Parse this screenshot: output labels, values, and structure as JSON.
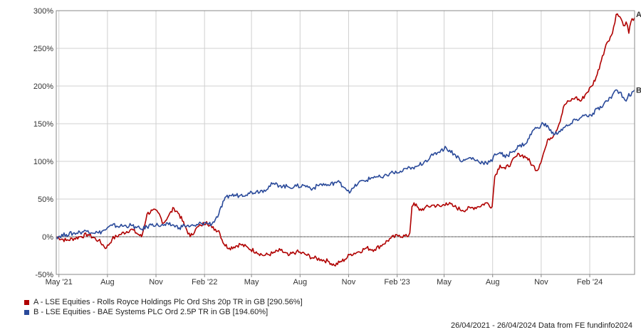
{
  "chart_data": {
    "type": "line",
    "y_axis": {
      "ticks": [
        "300%",
        "250%",
        "200%",
        "150%",
        "100%",
        "50%",
        "0%",
        "-50%"
      ],
      "values": [
        300,
        250,
        200,
        150,
        100,
        50,
        0,
        -50
      ],
      "ylim": [
        -50,
        300
      ]
    },
    "x_axis": {
      "ticks": [
        "May '21",
        "Aug",
        "Nov",
        "Feb '22",
        "May",
        "Aug",
        "Nov",
        "Feb '23",
        "May",
        "Aug",
        "Nov",
        "Feb '24"
      ],
      "tick_dates": [
        "2021-05-01",
        "2021-08-01",
        "2021-11-01",
        "2022-02-01",
        "2022-05-01",
        "2022-08-01",
        "2022-11-01",
        "2023-02-01",
        "2023-05-01",
        "2023-08-01",
        "2023-11-01",
        "2024-02-01"
      ],
      "range": [
        "2021-04-26",
        "2024-04-26"
      ]
    },
    "grid": true,
    "zero_line": "dotted",
    "series": [
      {
        "key": "A",
        "name": "A - LSE Equities - Rolls Royce Holdings Plc Ord Shs 20p TR in GB [290.56%]",
        "color": "#b00000",
        "points": [
          [
            "2021-04-26",
            0
          ],
          [
            "2021-05-15",
            -5
          ],
          [
            "2021-06-10",
            0
          ],
          [
            "2021-06-25",
            3
          ],
          [
            "2021-07-15",
            -5
          ],
          [
            "2021-07-30",
            -15
          ],
          [
            "2021-08-10",
            -3
          ],
          [
            "2021-08-25",
            3
          ],
          [
            "2021-09-15",
            10
          ],
          [
            "2021-09-25",
            5
          ],
          [
            "2021-10-05",
            0
          ],
          [
            "2021-10-15",
            30
          ],
          [
            "2021-10-25",
            35
          ],
          [
            "2021-11-05",
            32
          ],
          [
            "2021-11-15",
            18
          ],
          [
            "2021-11-25",
            28
          ],
          [
            "2021-12-05",
            38
          ],
          [
            "2021-12-15",
            30
          ],
          [
            "2021-12-25",
            15
          ],
          [
            "2022-01-05",
            0
          ],
          [
            "2022-01-15",
            10
          ],
          [
            "2022-01-25",
            15
          ],
          [
            "2022-02-05",
            20
          ],
          [
            "2022-02-15",
            12
          ],
          [
            "2022-02-28",
            8
          ],
          [
            "2022-03-10",
            -10
          ],
          [
            "2022-03-20",
            -15
          ],
          [
            "2022-04-10",
            -10
          ],
          [
            "2022-04-25",
            -15
          ],
          [
            "2022-05-10",
            -20
          ],
          [
            "2022-05-25",
            -25
          ],
          [
            "2022-06-10",
            -22
          ],
          [
            "2022-06-25",
            -18
          ],
          [
            "2022-07-10",
            -25
          ],
          [
            "2022-07-25",
            -20
          ],
          [
            "2022-08-10",
            -23
          ],
          [
            "2022-08-25",
            -28
          ],
          [
            "2022-09-10",
            -30
          ],
          [
            "2022-09-25",
            -33
          ],
          [
            "2022-10-05",
            -38
          ],
          [
            "2022-10-15",
            -34
          ],
          [
            "2022-10-25",
            -30
          ],
          [
            "2022-11-05",
            -23
          ],
          [
            "2022-11-20",
            -20
          ],
          [
            "2022-12-05",
            -15
          ],
          [
            "2022-12-20",
            -17
          ],
          [
            "2023-01-05",
            -10
          ],
          [
            "2023-01-20",
            -2
          ],
          [
            "2023-02-05",
            2
          ],
          [
            "2023-02-20",
            0
          ],
          [
            "2023-02-25",
            5
          ],
          [
            "2023-03-01",
            40
          ],
          [
            "2023-03-05",
            45
          ],
          [
            "2023-03-15",
            35
          ],
          [
            "2023-03-25",
            38
          ],
          [
            "2023-04-10",
            42
          ],
          [
            "2023-04-25",
            40
          ],
          [
            "2023-05-05",
            45
          ],
          [
            "2023-05-20",
            40
          ],
          [
            "2023-06-05",
            35
          ],
          [
            "2023-06-20",
            38
          ],
          [
            "2023-07-05",
            40
          ],
          [
            "2023-07-20",
            45
          ],
          [
            "2023-07-31",
            40
          ],
          [
            "2023-08-05",
            80
          ],
          [
            "2023-08-15",
            95
          ],
          [
            "2023-08-25",
            90
          ],
          [
            "2023-09-05",
            98
          ],
          [
            "2023-09-20",
            110
          ],
          [
            "2023-10-05",
            105
          ],
          [
            "2023-10-15",
            95
          ],
          [
            "2023-10-25",
            88
          ],
          [
            "2023-11-05",
            110
          ],
          [
            "2023-11-15",
            130
          ],
          [
            "2023-11-25",
            135
          ],
          [
            "2023-12-05",
            150
          ],
          [
            "2023-12-15",
            175
          ],
          [
            "2023-12-25",
            180
          ],
          [
            "2024-01-05",
            185
          ],
          [
            "2024-01-15",
            180
          ],
          [
            "2024-01-25",
            190
          ],
          [
            "2024-02-05",
            200
          ],
          [
            "2024-02-15",
            215
          ],
          [
            "2024-02-25",
            240
          ],
          [
            "2024-03-05",
            258
          ],
          [
            "2024-03-15",
            270
          ],
          [
            "2024-03-22",
            295
          ],
          [
            "2024-03-29",
            292
          ],
          [
            "2024-04-05",
            280
          ],
          [
            "2024-04-10",
            285
          ],
          [
            "2024-04-15",
            270
          ],
          [
            "2024-04-19",
            285
          ],
          [
            "2024-04-26",
            290.56
          ]
        ]
      },
      {
        "key": "B",
        "name": "B - LSE Equities - BAE Systems PLC Ord 2.5P TR in GB [194.60%]",
        "color": "#2a4a9a",
        "points": [
          [
            "2021-04-26",
            0
          ],
          [
            "2021-05-15",
            3
          ],
          [
            "2021-06-10",
            6
          ],
          [
            "2021-06-25",
            8
          ],
          [
            "2021-07-15",
            5
          ],
          [
            "2021-07-30",
            10
          ],
          [
            "2021-08-10",
            15
          ],
          [
            "2021-08-25",
            14
          ],
          [
            "2021-09-15",
            15
          ],
          [
            "2021-09-25",
            12
          ],
          [
            "2021-10-05",
            10
          ],
          [
            "2021-10-15",
            13
          ],
          [
            "2021-10-25",
            17
          ],
          [
            "2021-11-05",
            15
          ],
          [
            "2021-11-15",
            15
          ],
          [
            "2021-11-25",
            16
          ],
          [
            "2021-12-05",
            15
          ],
          [
            "2021-12-15",
            12
          ],
          [
            "2021-12-25",
            15
          ],
          [
            "2022-01-05",
            14
          ],
          [
            "2022-01-15",
            14
          ],
          [
            "2022-01-25",
            18
          ],
          [
            "2022-02-05",
            18
          ],
          [
            "2022-02-15",
            17
          ],
          [
            "2022-02-28",
            30
          ],
          [
            "2022-03-10",
            48
          ],
          [
            "2022-03-20",
            55
          ],
          [
            "2022-04-10",
            55
          ],
          [
            "2022-04-25",
            58
          ],
          [
            "2022-05-10",
            60
          ],
          [
            "2022-05-25",
            62
          ],
          [
            "2022-06-10",
            70
          ],
          [
            "2022-06-25",
            68
          ],
          [
            "2022-07-10",
            66
          ],
          [
            "2022-07-25",
            67
          ],
          [
            "2022-08-10",
            68
          ],
          [
            "2022-08-25",
            64
          ],
          [
            "2022-09-10",
            70
          ],
          [
            "2022-09-25",
            68
          ],
          [
            "2022-10-05",
            72
          ],
          [
            "2022-10-15",
            72
          ],
          [
            "2022-10-25",
            65
          ],
          [
            "2022-11-05",
            60
          ],
          [
            "2022-11-20",
            72
          ],
          [
            "2022-12-05",
            75
          ],
          [
            "2022-12-20",
            80
          ],
          [
            "2023-01-05",
            78
          ],
          [
            "2023-01-20",
            85
          ],
          [
            "2023-02-05",
            85
          ],
          [
            "2023-02-20",
            90
          ],
          [
            "2023-02-25",
            92
          ],
          [
            "2023-03-01",
            92
          ],
          [
            "2023-03-05",
            90
          ],
          [
            "2023-03-15",
            95
          ],
          [
            "2023-03-25",
            100
          ],
          [
            "2023-04-10",
            108
          ],
          [
            "2023-04-25",
            115
          ],
          [
            "2023-05-05",
            118
          ],
          [
            "2023-05-20",
            110
          ],
          [
            "2023-06-05",
            100
          ],
          [
            "2023-06-20",
            105
          ],
          [
            "2023-07-05",
            100
          ],
          [
            "2023-07-20",
            98
          ],
          [
            "2023-07-31",
            100
          ],
          [
            "2023-08-05",
            110
          ],
          [
            "2023-08-15",
            112
          ],
          [
            "2023-08-25",
            105
          ],
          [
            "2023-09-05",
            112
          ],
          [
            "2023-09-20",
            120
          ],
          [
            "2023-10-05",
            125
          ],
          [
            "2023-10-15",
            140
          ],
          [
            "2023-10-25",
            145
          ],
          [
            "2023-11-05",
            150
          ],
          [
            "2023-11-15",
            145
          ],
          [
            "2023-11-25",
            135
          ],
          [
            "2023-12-05",
            140
          ],
          [
            "2023-12-15",
            145
          ],
          [
            "2023-12-25",
            148
          ],
          [
            "2024-01-05",
            155
          ],
          [
            "2024-01-15",
            158
          ],
          [
            "2024-01-25",
            162
          ],
          [
            "2024-02-05",
            160
          ],
          [
            "2024-02-15",
            170
          ],
          [
            "2024-02-25",
            172
          ],
          [
            "2024-03-05",
            180
          ],
          [
            "2024-03-15",
            188
          ],
          [
            "2024-03-22",
            195
          ],
          [
            "2024-03-29",
            192
          ],
          [
            "2024-04-05",
            185
          ],
          [
            "2024-04-10",
            180
          ],
          [
            "2024-04-15",
            190
          ],
          [
            "2024-04-19",
            187
          ],
          [
            "2024-04-26",
            194.6
          ]
        ]
      }
    ]
  },
  "footer": {
    "date_range": "26/04/2021 - 26/04/2024 Data from FE fundinfo2024"
  }
}
